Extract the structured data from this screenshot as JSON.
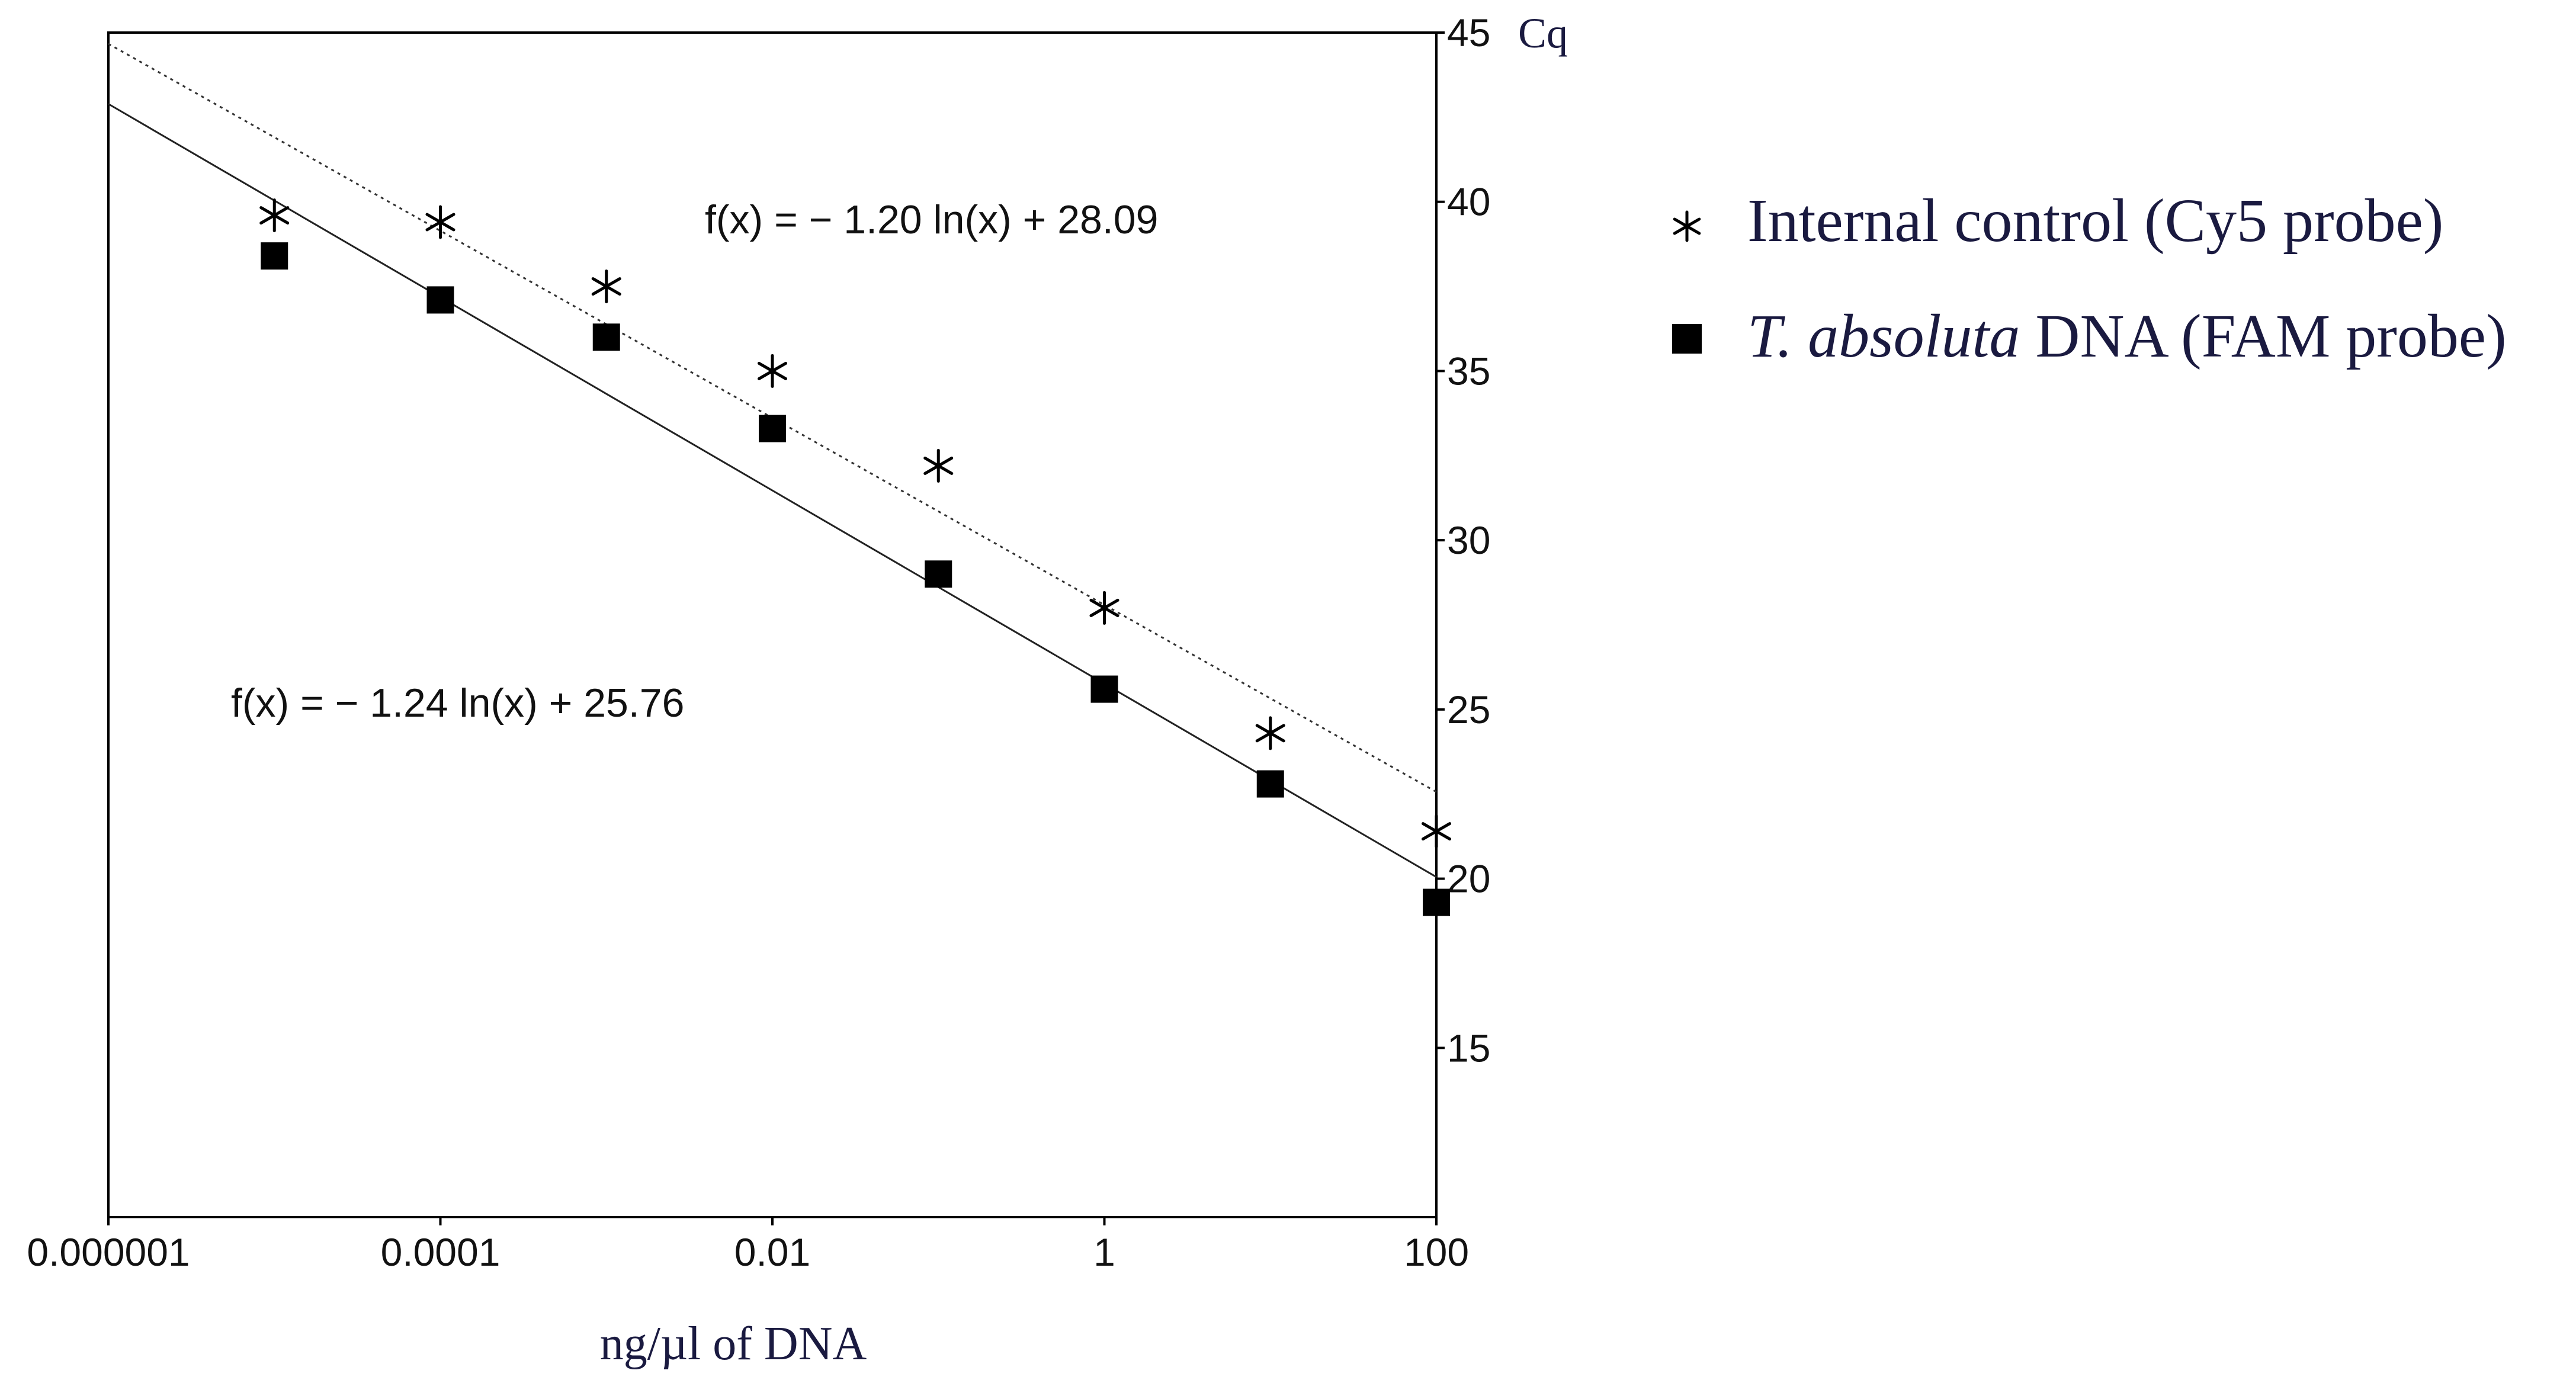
{
  "chart_data": {
    "type": "scatter",
    "title": "",
    "xlabel": "ng/µl of DNA",
    "ylabel": "Cq",
    "x_scale": "log10",
    "xlim": [
      1e-06,
      100
    ],
    "ylim": [
      10,
      45
    ],
    "x_ticks": [
      {
        "value": 1e-06,
        "label": "0.000001"
      },
      {
        "value": 0.0001,
        "label": "0.0001"
      },
      {
        "value": 0.01,
        "label": "0.01"
      },
      {
        "value": 1,
        "label": "1"
      },
      {
        "value": 100,
        "label": "100"
      }
    ],
    "y_ticks": [
      {
        "value": 15,
        "label": "15"
      },
      {
        "value": 20,
        "label": "20"
      },
      {
        "value": 25,
        "label": "25"
      },
      {
        "value": 30,
        "label": "30"
      },
      {
        "value": 35,
        "label": "35"
      },
      {
        "value": 40,
        "label": "40"
      },
      {
        "value": 45,
        "label": "45"
      }
    ],
    "series": [
      {
        "name": "Internal control (Cy5 probe)",
        "marker": "asterisk",
        "x": [
          1e-05,
          0.0001,
          0.001,
          0.01,
          0.1,
          1,
          10,
          100
        ],
        "y": [
          39.6,
          39.4,
          37.5,
          35.0,
          32.2,
          28.0,
          24.3,
          21.4
        ]
      },
      {
        "name": "T. absoluta DNA (FAM probe)",
        "name_italic_part": "T. absoluta",
        "name_rest": " DNA (FAM probe)",
        "marker": "square",
        "x": [
          1e-05,
          0.0001,
          0.001,
          0.01,
          0.1,
          1,
          10,
          100
        ],
        "y": [
          38.4,
          37.1,
          36.0,
          33.3,
          29.0,
          25.6,
          22.8,
          19.3
        ]
      }
    ],
    "fit_lines": [
      {
        "series": "Internal control (Cy5 probe)",
        "equation": "f(x) = − 1.20  ln(x) + 28.09",
        "slope": -1.2,
        "intercept": 28.09,
        "style": "dotted"
      },
      {
        "series": "T. absoluta DNA (FAM probe)",
        "equation": "f(x) = − 1.24  ln(x) + 25.76",
        "slope": -1.24,
        "intercept": 25.76,
        "style": "solid"
      }
    ],
    "legend": {
      "placement": "right",
      "items": [
        "Internal control (Cy5 probe)",
        "T. absoluta DNA (FAM probe)"
      ]
    },
    "grid": false
  }
}
